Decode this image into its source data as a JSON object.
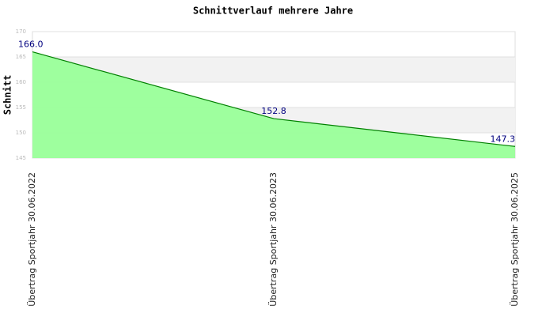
{
  "chart_data": {
    "type": "area",
    "title": "Schnittverlauf mehrere Jahre",
    "y_label": "Schnitt",
    "categories": [
      "Übertrag Sportjahr 30.06.2022",
      "Übertrag Sportjahr 30.06.2023",
      "Übertrag Sportjahr 30.06.2025"
    ],
    "values": [
      166.0,
      152.8,
      147.3
    ],
    "value_labels": [
      "166.0",
      "152.8",
      "147.3"
    ],
    "color": "#99ff99",
    "line_color": "#008000",
    "label_color": "#000080",
    "band_color": "#f2f2f2",
    "ylim": [
      145,
      170
    ],
    "yticks": [
      145,
      150,
      155,
      160,
      165,
      170
    ]
  }
}
